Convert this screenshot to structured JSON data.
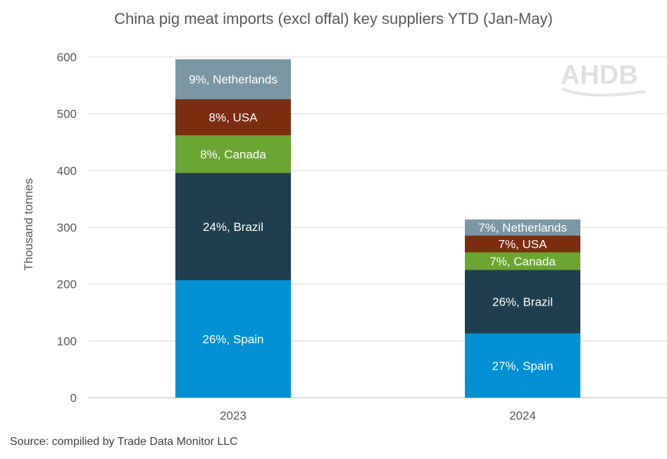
{
  "title": "China pig meat imports (excl offal) key suppliers YTD (Jan-May)",
  "source": "Source: compilied by Trade Data Monitor LLC",
  "logo": "AHDB",
  "colors": {
    "Spain": "#0091d5",
    "Brazil": "#1d3f50",
    "Canada": "#6aa632",
    "USA": "#7b2e0f",
    "Netherlands": "#7b97a6",
    "grid": "#d9d9d9",
    "axis": "#bfbfbf"
  },
  "chart_data": {
    "type": "bar",
    "stacked": true,
    "title": "China pig meat imports (excl offal) key suppliers YTD (Jan-May)",
    "xlabel": "",
    "ylabel": "Thousand tonnes",
    "ylim": [
      0,
      600
    ],
    "yticks": [
      0,
      100,
      200,
      300,
      400,
      500,
      600
    ],
    "grid": true,
    "categories": [
      "2023",
      "2024"
    ],
    "series": [
      {
        "name": "Spain",
        "values": [
          207,
          113
        ],
        "labels": [
          "26%, Spain",
          "27%, Spain"
        ]
      },
      {
        "name": "Brazil",
        "values": [
          189,
          112
        ],
        "labels": [
          "24%, Brazil",
          "26%, Brazil"
        ]
      },
      {
        "name": "Canada",
        "values": [
          66,
          31
        ],
        "labels": [
          "8%, Canada",
          "7%, Canada"
        ]
      },
      {
        "name": "USA",
        "values": [
          64,
          30
        ],
        "labels": [
          "8%, USA",
          "7%, USA"
        ]
      },
      {
        "name": "Netherlands",
        "values": [
          70,
          28
        ],
        "labels": [
          "9%, Netherlands",
          "7%, Netherlands"
        ]
      }
    ]
  }
}
